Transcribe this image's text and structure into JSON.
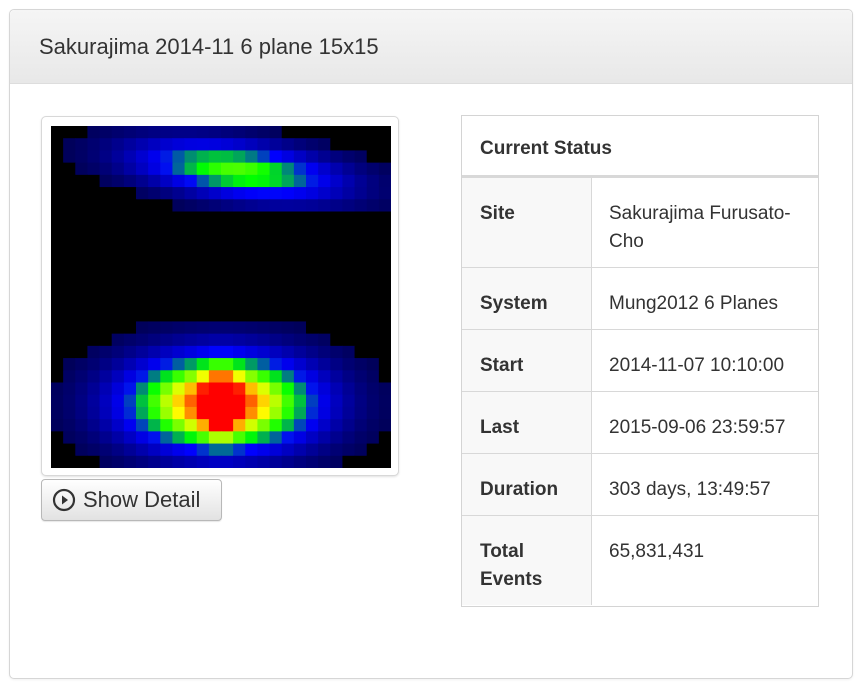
{
  "panel": {
    "title": "Sakurajima 2014-11 6 plane 15x15"
  },
  "image": {
    "icon": "muon-radiography-heatmap",
    "colormap": [
      "#000000",
      "#0000ff",
      "#00ff00",
      "#ffff00",
      "#ff0000"
    ]
  },
  "detail_button": {
    "icon": "play-circle-icon",
    "label": "Show Detail"
  },
  "status": {
    "heading": "Current Status",
    "rows": [
      {
        "key": "Site",
        "value": "Sakurajima Furusato-Cho"
      },
      {
        "key": "System",
        "value": "Mung2012 6 Planes"
      },
      {
        "key": "Start",
        "value": "2014-11-07 10:10:00"
      },
      {
        "key": "Last",
        "value": "2015-09-06 23:59:57"
      },
      {
        "key": "Duration",
        "value": "303 days, 13:49:57"
      },
      {
        "key": "Total Events",
        "value": "65,831,431"
      }
    ]
  }
}
